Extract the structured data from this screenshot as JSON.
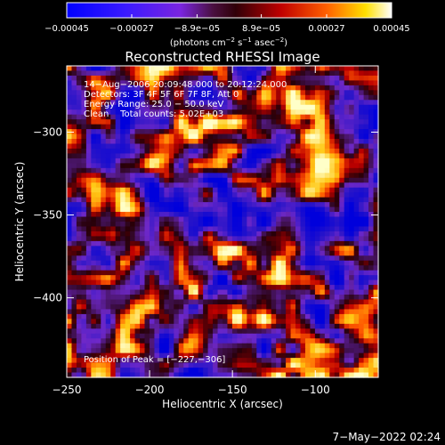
{
  "chart_data": {
    "type": "heatmap",
    "title": "Reconstructed RHESSI Image",
    "xlabel": "Heliocentric X (arcsec)",
    "ylabel": "Heliocentric Y (arcsec)",
    "xlim": [
      -250,
      -62
    ],
    "ylim": [
      -448,
      -260
    ],
    "x_ticks": [
      {
        "v": -250,
        "label": "−250"
      },
      {
        "v": -200,
        "label": "−200"
      },
      {
        "v": -150,
        "label": "−150"
      },
      {
        "v": -100,
        "label": "−100"
      }
    ],
    "y_ticks": [
      {
        "v": -300,
        "label": "−300"
      },
      {
        "v": -350,
        "label": "−350"
      },
      {
        "v": -400,
        "label": "−400"
      }
    ],
    "colorbar": {
      "ticks": [
        {
          "v": -0.00045,
          "label": "−0.00045"
        },
        {
          "v": -0.00027,
          "label": "−0.00027"
        },
        {
          "v": -8.9e-05,
          "label": "−8.9e−05"
        },
        {
          "v": 8.9e-05,
          "label": "8.9e−05"
        },
        {
          "v": 0.00027,
          "label": "0.00027"
        },
        {
          "v": 0.00045,
          "label": "0.00045"
        }
      ],
      "range": [
        -0.00045,
        0.00045
      ],
      "units_prefix": "(photons cm",
      "units_exp1": "−2",
      "units_mid1": " s",
      "units_exp2": "−1",
      "units_mid2": " asec",
      "units_exp3": "−2",
      "units_suffix": ")"
    },
    "annotations": [
      "14−Aug−2006 20:09:48.000 to 20:12:24.000",
      "Detectors: 3F 4F 5F 6F 7F 8F, Att 0",
      "Energy Range: 25.0 − 50.0 keV",
      "Clean    Total counts: 5.02E+03"
    ],
    "peak_label": "Position of Peak = [−227,−306]",
    "colors": {
      "background": "#000000",
      "low": "#0000ff",
      "mid": "#8b2be2",
      "high": "#ff2000",
      "peak": "#ffffa0"
    }
  },
  "footer": {
    "date": "7−May−2022 02:24"
  }
}
